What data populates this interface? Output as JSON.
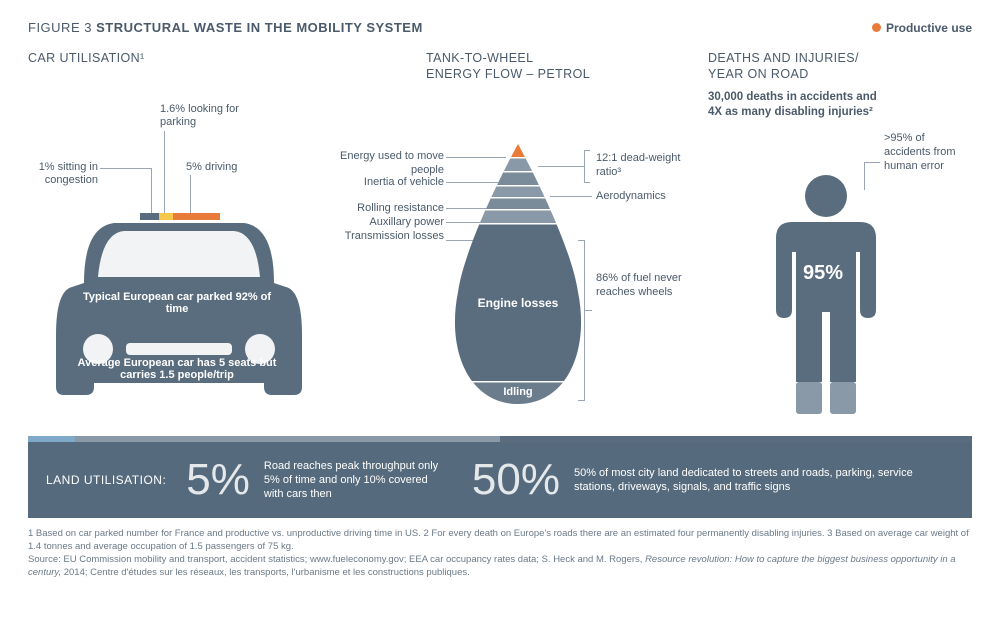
{
  "header": {
    "figure_prefix": "FIGURE 3",
    "figure_title": "STRUCTURAL WASTE IN THE MOBILITY SYSTEM",
    "legend_label": "Productive use",
    "legend_color": "#e87b3a"
  },
  "colors": {
    "slate": "#5a6d7e",
    "slate_dark": "#4f6272",
    "slate_light": "#8a99a7",
    "orange": "#e87b3a",
    "yellow": "#f5c84a",
    "blue_light": "#7fa9c9",
    "white": "#ffffff",
    "text": "#4a5a6a",
    "line": "#9aa7b3",
    "bar_bg": "#556a7c"
  },
  "panel1": {
    "title": "CAR UTILISATION¹",
    "callouts": {
      "congestion": "1% sitting in congestion",
      "parking": "1.6% looking for parking",
      "driving": "5% driving"
    },
    "parked_text": "Typical European car parked 92% of time",
    "seats_text": "Average European car has 5 seats but carries 1.5 people/trip",
    "roof_segments": [
      {
        "color": "#5a6d7e",
        "width_pct": 12
      },
      {
        "color": "#f5c84a",
        "width_pct": 9
      },
      {
        "color": "#e87b3a",
        "width_pct": 30
      }
    ]
  },
  "panel2": {
    "title": "TANK-TO-WHEEL\nENERGY FLOW – PETROL",
    "left_labels": [
      "Energy used to move people",
      "Inertia of vehicle",
      "Rolling resistance",
      "Auxillary power",
      "Transmission losses"
    ],
    "right_labels": {
      "deadweight": "12:1 dead-weight ratio³",
      "aero": "Aerodynamics",
      "fuel": "86% of fuel never reaches wheels"
    },
    "drop_labels": {
      "engine_losses": "Engine losses",
      "idling": "Idling"
    },
    "drop_colors": {
      "tip": "#e87b3a",
      "band1": "#8a99a7",
      "band2": "#7a8b9a",
      "band3": "#8a99a7",
      "band4": "#7a8b9a",
      "band5": "#8a99a7",
      "main": "#5a6d7e",
      "idling": "#6b7d8d",
      "divider": "#ffffff"
    }
  },
  "panel3": {
    "title": "DEATHS AND INJURIES/\nYEAR ON ROAD",
    "subtitle": "30,000 deaths in accidents and 4X as many disabling injuries²",
    "callout": ">95% of accidents from human error",
    "percent_label": "95%",
    "person_body_color": "#5a6d7e",
    "person_leg_color": "#8a99a7"
  },
  "land": {
    "label": "LAND UTILISATION:",
    "thin_segments": [
      {
        "color": "#7fa9c9",
        "width_pct": 5
      },
      {
        "color": "#8a99a7",
        "width_pct": 45
      },
      {
        "color": "#5a6d7e",
        "width_pct": 50
      }
    ],
    "stat1_value": "5%",
    "stat1_desc": "Road reaches peak throughput only 5% of time and only 10% covered with cars then",
    "stat2_value": "50%",
    "stat2_desc": "50% of most city land dedicated to streets and roads, parking, service stations, driveways, signals, and traffic signs",
    "bar_color": "#556a7c"
  },
  "footnotes": {
    "line1": "1 Based on car parked number for France and productive vs. unproductive driving time in US.  2 For every death on Europe's roads there are an estimated four permanently disabling injuries. 3 Based on average car weight of 1.4 tonnes and average occupation of 1.5 passengers of 75 kg.",
    "source_prefix": "Source: EU Commission mobility and transport, accident statistics; www.fueleconomy.gov; EEA car occupancy rates data; S. Heck and M. Rogers, ",
    "source_italic": "Resource revolution: How to capture the biggest business opportunity in a century,",
    "source_suffix": " 2014; Centre d'études sur les réseaux, les transports, l'urbanisme et les constructions publiques."
  }
}
